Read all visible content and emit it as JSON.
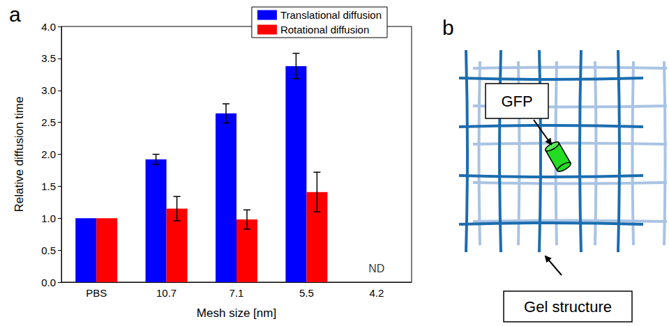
{
  "chart_data": {
    "type": "bar",
    "panel_label": "a",
    "x_label": "Mesh size [nm]",
    "y_label": "Relative diffusion time",
    "categories": [
      "PBS",
      "10.7",
      "7.1",
      "5.5",
      "4.2"
    ],
    "series": [
      {
        "name": "Translational diffusion",
        "color": "#0000ff",
        "values": [
          1.0,
          1.92,
          2.64,
          3.38,
          null
        ],
        "errors": [
          0,
          0.08,
          0.15,
          0.2,
          null
        ]
      },
      {
        "name": "Rotational diffusion",
        "color": "#ff0000",
        "values": [
          1.0,
          1.15,
          0.98,
          1.41,
          null
        ],
        "errors": [
          0,
          0.19,
          0.15,
          0.31,
          null
        ]
      }
    ],
    "annotations": [
      {
        "text": "ND",
        "category": "4.2"
      }
    ],
    "ylim": [
      0,
      4
    ],
    "yticks": [
      {
        "value": 0,
        "label": "0.0"
      },
      {
        "value": 0.5,
        "label": "0.5"
      },
      {
        "value": 1,
        "label": "1.0"
      },
      {
        "value": 1.5,
        "label": "1.5"
      },
      {
        "value": 2,
        "label": "2.0"
      },
      {
        "value": 2.5,
        "label": "2.5"
      },
      {
        "value": 3,
        "label": "3.0"
      },
      {
        "value": 3.5,
        "label": "3.5"
      },
      {
        "value": 4,
        "label": "4.0"
      }
    ],
    "grid": false,
    "legend": "upper right"
  },
  "panel_b": {
    "panel_label": "b",
    "gfp_label": "GFP",
    "gel_label": "Gel structure"
  }
}
